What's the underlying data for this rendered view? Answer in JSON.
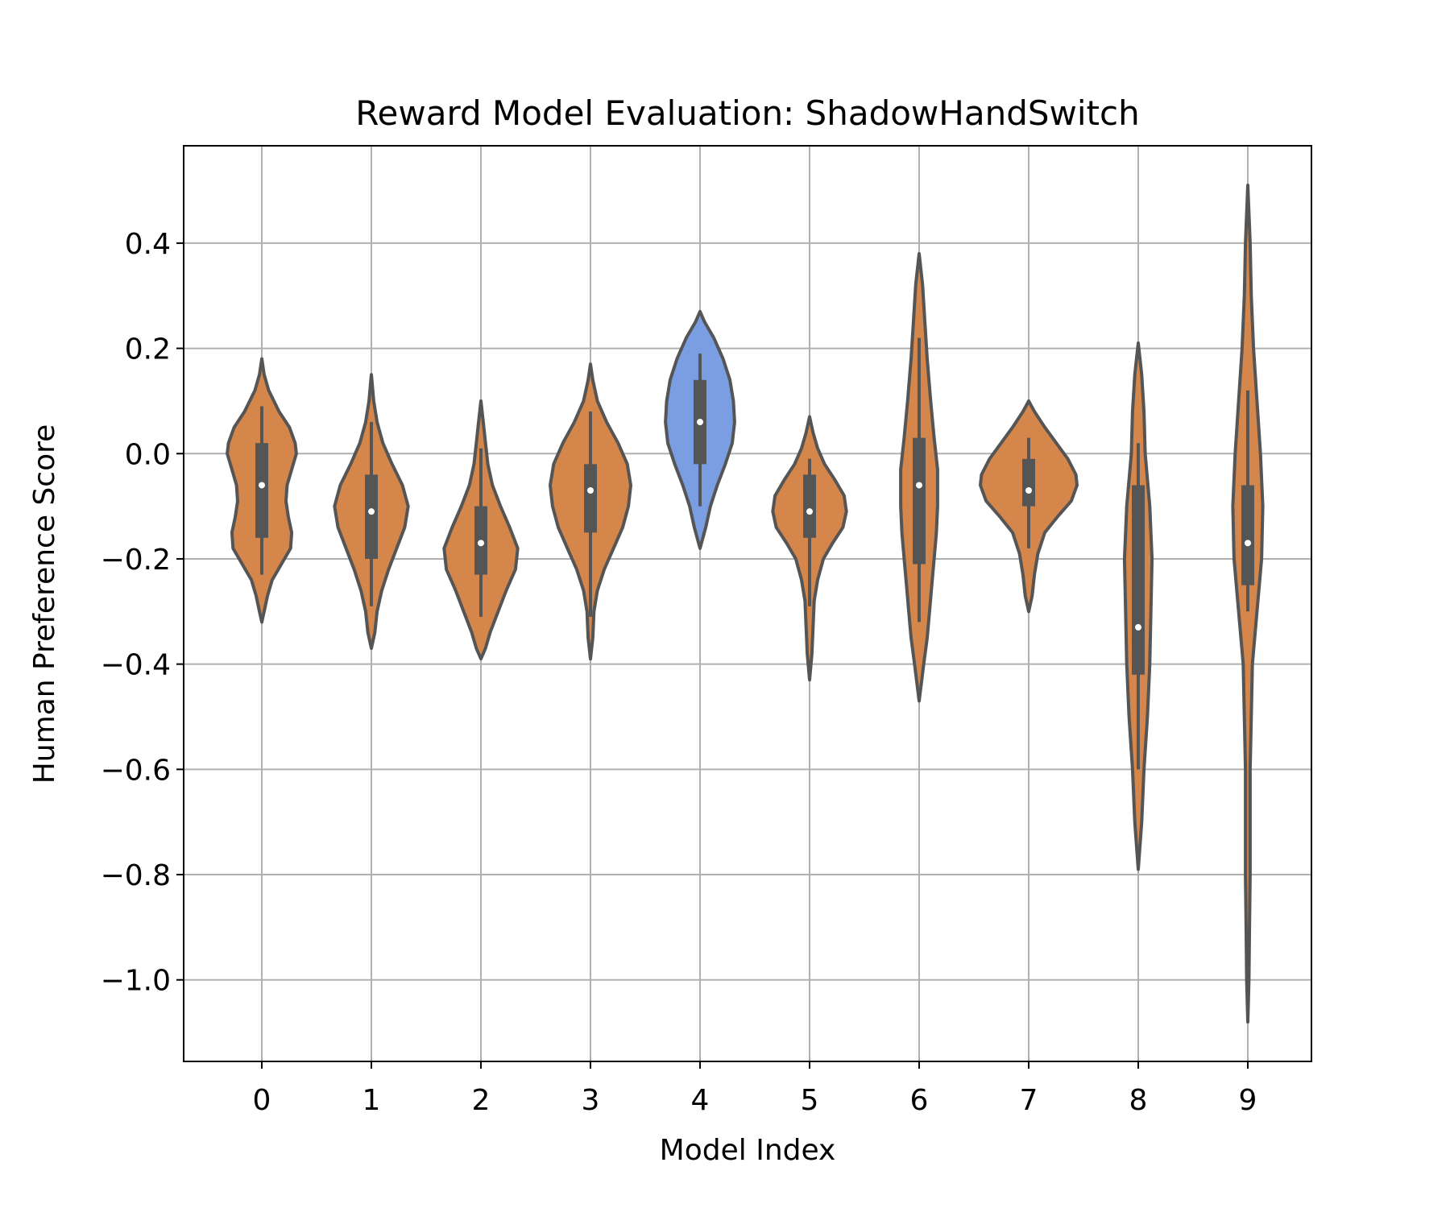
{
  "chart_data": {
    "type": "violin",
    "title": "Reward Model Evaluation: ShadowHandSwitch",
    "xlabel": "Model Index",
    "ylabel": "Human Preference Score",
    "categories": [
      "0",
      "1",
      "2",
      "3",
      "4",
      "5",
      "6",
      "7",
      "8",
      "9"
    ],
    "ylim": [
      -1.155,
      0.585
    ],
    "yticks": [
      0.4,
      0.2,
      0.0,
      -0.2,
      -0.4,
      -0.6,
      -0.8,
      -1.0
    ],
    "ytick_labels": [
      "0.4",
      "0.2",
      "0.0",
      "−0.2",
      "−0.4",
      "−0.6",
      "−0.8",
      "−1.0"
    ],
    "grid": true,
    "highlighted_category": "4",
    "colors": {
      "default_fill": "#d5864a",
      "highlight_fill": "#7b9ee3",
      "outline": "#555555",
      "grid": "#b0b0b0"
    },
    "violins": [
      {
        "category": "0",
        "min": -0.32,
        "max": 0.18,
        "q1": -0.16,
        "median": -0.06,
        "q3": 0.02,
        "whisker_low": -0.23,
        "whisker_high": 0.09,
        "profile": [
          [
            0.18,
            0
          ],
          [
            0.15,
            0.02
          ],
          [
            0.12,
            0.06
          ],
          [
            0.08,
            0.15
          ],
          [
            0.05,
            0.24
          ],
          [
            0.02,
            0.29
          ],
          [
            0.0,
            0.3
          ],
          [
            -0.03,
            0.26
          ],
          [
            -0.06,
            0.22
          ],
          [
            -0.09,
            0.21
          ],
          [
            -0.12,
            0.23
          ],
          [
            -0.15,
            0.26
          ],
          [
            -0.18,
            0.25
          ],
          [
            -0.21,
            0.17
          ],
          [
            -0.24,
            0.09
          ],
          [
            -0.27,
            0.05
          ],
          [
            -0.3,
            0.02
          ],
          [
            -0.32,
            0
          ]
        ]
      },
      {
        "category": "1",
        "min": -0.37,
        "max": 0.15,
        "q1": -0.2,
        "median": -0.11,
        "q3": -0.04,
        "whisker_low": -0.29,
        "whisker_high": 0.06,
        "profile": [
          [
            0.15,
            0
          ],
          [
            0.1,
            0.02
          ],
          [
            0.06,
            0.05
          ],
          [
            0.02,
            0.1
          ],
          [
            -0.02,
            0.18
          ],
          [
            -0.06,
            0.27
          ],
          [
            -0.1,
            0.32
          ],
          [
            -0.14,
            0.29
          ],
          [
            -0.18,
            0.22
          ],
          [
            -0.22,
            0.15
          ],
          [
            -0.26,
            0.09
          ],
          [
            -0.3,
            0.05
          ],
          [
            -0.34,
            0.03
          ],
          [
            -0.37,
            0
          ]
        ]
      },
      {
        "category": "2",
        "min": -0.39,
        "max": 0.1,
        "q1": -0.23,
        "median": -0.17,
        "q3": -0.1,
        "whisker_low": -0.31,
        "whisker_high": 0.01,
        "profile": [
          [
            0.1,
            0
          ],
          [
            0.06,
            0.02
          ],
          [
            0.02,
            0.04
          ],
          [
            -0.02,
            0.06
          ],
          [
            -0.06,
            0.1
          ],
          [
            -0.1,
            0.17
          ],
          [
            -0.14,
            0.25
          ],
          [
            -0.18,
            0.32
          ],
          [
            -0.22,
            0.3
          ],
          [
            -0.26,
            0.22
          ],
          [
            -0.3,
            0.15
          ],
          [
            -0.34,
            0.08
          ],
          [
            -0.37,
            0.04
          ],
          [
            -0.39,
            0
          ]
        ]
      },
      {
        "category": "3",
        "min": -0.39,
        "max": 0.17,
        "q1": -0.15,
        "median": -0.07,
        "q3": -0.02,
        "whisker_low": -0.31,
        "whisker_high": 0.08,
        "profile": [
          [
            0.17,
            0
          ],
          [
            0.14,
            0.02
          ],
          [
            0.1,
            0.06
          ],
          [
            0.06,
            0.14
          ],
          [
            0.02,
            0.24
          ],
          [
            -0.02,
            0.32
          ],
          [
            -0.06,
            0.35
          ],
          [
            -0.1,
            0.33
          ],
          [
            -0.14,
            0.28
          ],
          [
            -0.18,
            0.2
          ],
          [
            -0.22,
            0.12
          ],
          [
            -0.26,
            0.06
          ],
          [
            -0.3,
            0.03
          ],
          [
            -0.35,
            0.02
          ],
          [
            -0.39,
            0
          ]
        ]
      },
      {
        "category": "4",
        "min": -0.18,
        "max": 0.27,
        "q1": -0.02,
        "median": 0.06,
        "q3": 0.14,
        "whisker_low": -0.1,
        "whisker_high": 0.19,
        "profile": [
          [
            0.27,
            0
          ],
          [
            0.25,
            0.04
          ],
          [
            0.22,
            0.12
          ],
          [
            0.18,
            0.2
          ],
          [
            0.14,
            0.26
          ],
          [
            0.1,
            0.29
          ],
          [
            0.06,
            0.3
          ],
          [
            0.02,
            0.28
          ],
          [
            -0.02,
            0.22
          ],
          [
            -0.06,
            0.15
          ],
          [
            -0.1,
            0.09
          ],
          [
            -0.14,
            0.05
          ],
          [
            -0.18,
            0
          ]
        ]
      },
      {
        "category": "5",
        "min": -0.43,
        "max": 0.07,
        "q1": -0.16,
        "median": -0.11,
        "q3": -0.04,
        "whisker_low": -0.29,
        "whisker_high": -0.01,
        "profile": [
          [
            0.07,
            0
          ],
          [
            0.04,
            0.03
          ],
          [
            0.01,
            0.07
          ],
          [
            -0.02,
            0.13
          ],
          [
            -0.05,
            0.22
          ],
          [
            -0.08,
            0.3
          ],
          [
            -0.11,
            0.32
          ],
          [
            -0.14,
            0.29
          ],
          [
            -0.17,
            0.2
          ],
          [
            -0.2,
            0.12
          ],
          [
            -0.24,
            0.07
          ],
          [
            -0.28,
            0.04
          ],
          [
            -0.33,
            0.03
          ],
          [
            -0.38,
            0.02
          ],
          [
            -0.43,
            0
          ]
        ]
      },
      {
        "category": "6",
        "min": -0.47,
        "max": 0.38,
        "q1": -0.21,
        "median": -0.06,
        "q3": 0.03,
        "whisker_low": -0.32,
        "whisker_high": 0.22,
        "profile": [
          [
            0.38,
            0
          ],
          [
            0.32,
            0.03
          ],
          [
            0.25,
            0.05
          ],
          [
            0.18,
            0.07
          ],
          [
            0.1,
            0.1
          ],
          [
            0.03,
            0.13
          ],
          [
            -0.03,
            0.16
          ],
          [
            -0.1,
            0.16
          ],
          [
            -0.15,
            0.15
          ],
          [
            -0.2,
            0.13
          ],
          [
            -0.25,
            0.11
          ],
          [
            -0.3,
            0.09
          ],
          [
            -0.35,
            0.07
          ],
          [
            -0.4,
            0.04
          ],
          [
            -0.47,
            0
          ]
        ]
      },
      {
        "category": "7",
        "min": -0.3,
        "max": 0.1,
        "q1": -0.1,
        "median": -0.07,
        "q3": -0.01,
        "whisker_low": -0.18,
        "whisker_high": 0.03,
        "profile": [
          [
            0.1,
            0
          ],
          [
            0.08,
            0.05
          ],
          [
            0.05,
            0.14
          ],
          [
            0.02,
            0.24
          ],
          [
            -0.01,
            0.34
          ],
          [
            -0.04,
            0.41
          ],
          [
            -0.06,
            0.42
          ],
          [
            -0.09,
            0.37
          ],
          [
            -0.12,
            0.25
          ],
          [
            -0.15,
            0.14
          ],
          [
            -0.19,
            0.08
          ],
          [
            -0.23,
            0.05
          ],
          [
            -0.27,
            0.03
          ],
          [
            -0.3,
            0
          ]
        ]
      },
      {
        "category": "8",
        "min": -0.79,
        "max": 0.21,
        "q1": -0.42,
        "median": -0.33,
        "q3": -0.06,
        "whisker_low": -0.6,
        "whisker_high": 0.02,
        "profile": [
          [
            0.21,
            0
          ],
          [
            0.15,
            0.03
          ],
          [
            0.08,
            0.05
          ],
          [
            0.0,
            0.06
          ],
          [
            -0.1,
            0.1
          ],
          [
            -0.2,
            0.12
          ],
          [
            -0.3,
            0.11
          ],
          [
            -0.4,
            0.1
          ],
          [
            -0.5,
            0.08
          ],
          [
            -0.6,
            0.05
          ],
          [
            -0.7,
            0.03
          ],
          [
            -0.79,
            0
          ]
        ]
      },
      {
        "category": "9",
        "min": -1.08,
        "max": 0.51,
        "q1": -0.25,
        "median": -0.17,
        "q3": -0.06,
        "whisker_low": -0.3,
        "whisker_high": 0.12,
        "profile": [
          [
            0.51,
            0
          ],
          [
            0.4,
            0.02
          ],
          [
            0.3,
            0.03
          ],
          [
            0.2,
            0.05
          ],
          [
            0.1,
            0.08
          ],
          [
            0.0,
            0.11
          ],
          [
            -0.1,
            0.13
          ],
          [
            -0.2,
            0.12
          ],
          [
            -0.3,
            0.08
          ],
          [
            -0.4,
            0.04
          ],
          [
            -0.5,
            0.03
          ],
          [
            -0.6,
            0.02
          ],
          [
            -0.7,
            0.02
          ],
          [
            -0.8,
            0.02
          ],
          [
            -0.9,
            0.015
          ],
          [
            -1.0,
            0.01
          ],
          [
            -1.08,
            0
          ]
        ]
      }
    ]
  }
}
